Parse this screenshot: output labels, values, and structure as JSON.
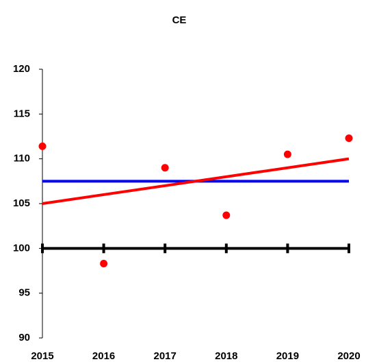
{
  "chart_data": {
    "type": "scatter",
    "title": "CE",
    "xlim": [
      2015,
      2020
    ],
    "xticks": [
      2015,
      2016,
      2017,
      2018,
      2019,
      2020
    ],
    "ylim": [
      90,
      120
    ],
    "yticks": [
      90,
      95,
      100,
      105,
      110,
      115,
      120
    ],
    "series": [
      {
        "kind": "line",
        "color": "#000000",
        "marker": "tick",
        "x": [
          2015,
          2016,
          2017,
          2018,
          2019,
          2020
        ],
        "values": [
          100,
          100,
          100,
          100,
          100,
          100
        ]
      },
      {
        "kind": "line",
        "color": "#0000ff",
        "x": [
          2015,
          2020
        ],
        "values": [
          107.5,
          107.5
        ]
      },
      {
        "kind": "line",
        "color": "#ff0000",
        "x": [
          2015,
          2020
        ],
        "values": [
          105.0,
          110.0
        ]
      },
      {
        "kind": "scatter",
        "color": "#ff0000",
        "x": [
          2015,
          2016,
          2017,
          2018,
          2019,
          2020
        ],
        "values": [
          111.4,
          98.3,
          109.0,
          103.7,
          110.5,
          112.3
        ]
      }
    ]
  }
}
